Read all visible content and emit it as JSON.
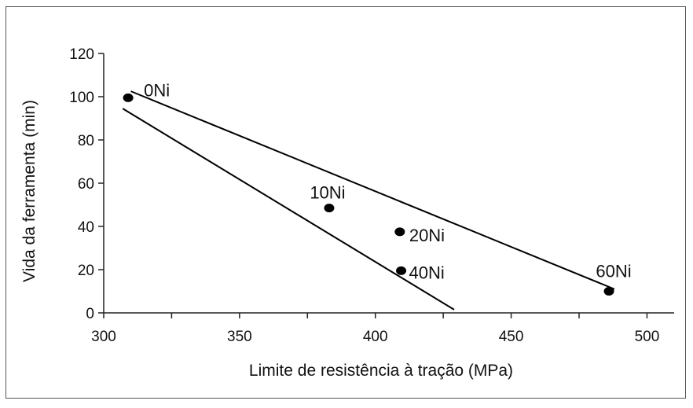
{
  "chart_data": {
    "type": "scatter",
    "title": "",
    "xlabel": "Limite de resistência à tração (MPa)",
    "ylabel": "Vida da ferramenta (min)",
    "xlim": [
      300,
      510
    ],
    "ylim": [
      0,
      120
    ],
    "x_ticks": [
      300,
      350,
      400,
      450,
      500
    ],
    "y_ticks": [
      0,
      20,
      40,
      60,
      80,
      100,
      120
    ],
    "grid": false,
    "legend": "none",
    "points": [
      {
        "label": "0Ni",
        "x": 309,
        "y": 99.5
      },
      {
        "label": "10Ni",
        "x": 383,
        "y": 48.5
      },
      {
        "label": "20Ni",
        "x": 409,
        "y": 37.5
      },
      {
        "label": "40Ni",
        "x": 409.5,
        "y": 19.5
      },
      {
        "label": "60Ni",
        "x": 486,
        "y": 10
      }
    ],
    "lines": [
      {
        "x": [
          310,
          488
        ],
        "y": [
          102.5,
          11
        ]
      },
      {
        "x": [
          307,
          429
        ],
        "y": [
          94.5,
          1.5
        ]
      }
    ],
    "colors": {
      "marker": "#000000",
      "line": "#000000"
    }
  }
}
